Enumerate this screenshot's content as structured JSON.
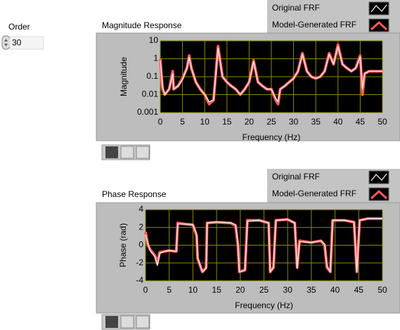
{
  "order": {
    "label": "Order",
    "value": 30
  },
  "chart_data": [
    {
      "type": "line",
      "title": "Magnitude Response",
      "x_label": "Frequency (Hz)",
      "y_label": "Magnitude",
      "log_y": true,
      "grid": true,
      "xlim": [
        0,
        50
      ],
      "xticks": [
        0,
        5,
        10,
        15,
        20,
        25,
        30,
        35,
        40,
        45,
        50
      ],
      "ylim": [
        0.001,
        10
      ],
      "yticks": [
        0.001,
        0.01,
        0.1,
        1,
        10
      ],
      "x": [
        0,
        0.5,
        1,
        2,
        2.8,
        3,
        4,
        5,
        6,
        6.5,
        7,
        8,
        9,
        10,
        11,
        12,
        13,
        14,
        15,
        16,
        17,
        18,
        19,
        20,
        21,
        22,
        23,
        24,
        25,
        26,
        26.5,
        27,
        28,
        29,
        30,
        31,
        32,
        33,
        34,
        35,
        36,
        37,
        38,
        39,
        40,
        41,
        42,
        43,
        44,
        45,
        45.5,
        46,
        47,
        48,
        49,
        50
      ],
      "series": [
        {
          "name": "Model-Generated FRF",
          "color": "#ff5a5a",
          "values": [
            1,
            0.02,
            0.01,
            0.02,
            0.2,
            0.02,
            0.03,
            0.08,
            0.3,
            1.5,
            0.3,
            0.05,
            0.02,
            0.01,
            0.003,
            0.005,
            5,
            0.1,
            0.05,
            0.03,
            0.02,
            0.01,
            0.02,
            0.05,
            0.8,
            0.05,
            0.03,
            0.02,
            0.02,
            0.005,
            0.003,
            0.02,
            0.03,
            0.05,
            0.08,
            0.2,
            2,
            0.2,
            0.1,
            0.08,
            0.1,
            0.2,
            2,
            0.5,
            6,
            0.5,
            0.3,
            0.2,
            0.3,
            1.5,
            0.01,
            0.15,
            0.2,
            0.2,
            0.2,
            0.2
          ]
        },
        {
          "name": "Original FRF",
          "color": "#ffffff",
          "values": [
            0.8,
            0.03,
            0.01,
            0.02,
            0.15,
            0.02,
            0.03,
            0.07,
            0.3,
            1.2,
            0.3,
            0.05,
            0.02,
            0.01,
            0.004,
            0.005,
            4,
            0.1,
            0.05,
            0.03,
            0.02,
            0.01,
            0.02,
            0.05,
            0.7,
            0.05,
            0.03,
            0.02,
            0.02,
            0.006,
            0.004,
            0.02,
            0.03,
            0.05,
            0.08,
            0.2,
            1.8,
            0.2,
            0.1,
            0.08,
            0.1,
            0.2,
            1.8,
            0.5,
            5,
            0.5,
            0.3,
            0.2,
            0.3,
            1.3,
            0.02,
            0.15,
            0.2,
            0.2,
            0.2,
            0.2
          ]
        }
      ]
    },
    {
      "type": "line",
      "title": "Phase Response",
      "x_label": "Frequency (Hz)",
      "y_label": "Phase (rad)",
      "log_y": false,
      "grid": true,
      "xlim": [
        0,
        50
      ],
      "xticks": [
        0,
        5,
        10,
        15,
        20,
        25,
        30,
        35,
        40,
        45,
        50
      ],
      "ylim": [
        -4,
        4
      ],
      "yticks": [
        -4,
        -2,
        0,
        2,
        4
      ],
      "x": [
        0,
        0.5,
        1,
        2,
        2.5,
        3,
        4,
        5,
        6.5,
        6.8,
        8,
        10,
        10.8,
        11,
        12,
        12.8,
        13,
        15,
        18,
        19,
        19.5,
        19.8,
        21,
        21.5,
        24,
        26,
        26.3,
        27,
        27.5,
        30,
        31.5,
        32,
        32.5,
        35,
        37,
        37.8,
        38.3,
        39,
        39.5,
        42,
        44,
        44.6,
        45.2,
        47,
        50
      ],
      "series": [
        {
          "name": "Model-Generated FRF",
          "color": "#ff5a5a",
          "values": [
            1.5,
            0,
            -0.5,
            -1.2,
            -2,
            -0.8,
            -0.7,
            -0.6,
            -0.7,
            2.5,
            2.4,
            2.3,
            1,
            -1.5,
            -3,
            -2.5,
            2.5,
            2.6,
            2.5,
            2.2,
            0,
            -3,
            -2.8,
            2.8,
            2.8,
            2.5,
            -3,
            -2.5,
            2.8,
            2.9,
            2.5,
            -2.5,
            0.5,
            0.3,
            0.5,
            0,
            -2.5,
            -3,
            2.8,
            2.8,
            2.6,
            -3,
            2.8,
            3,
            3
          ]
        },
        {
          "name": "Original FRF",
          "color": "#ffffff",
          "values": [
            1.2,
            0.2,
            -0.6,
            -1.3,
            -2.3,
            -0.9,
            -0.7,
            -0.6,
            -0.7,
            2.4,
            2.4,
            2.3,
            1.2,
            -1.4,
            -3,
            -2.6,
            2.5,
            2.6,
            2.5,
            2.3,
            0.2,
            -3,
            -2.8,
            2.7,
            2.8,
            2.5,
            -3,
            -2.5,
            2.8,
            2.9,
            2.5,
            -2.6,
            0.4,
            0.3,
            0.5,
            0.1,
            -2.4,
            -3,
            2.8,
            2.8,
            2.6,
            -3,
            2.8,
            3,
            3
          ]
        }
      ]
    }
  ]
}
